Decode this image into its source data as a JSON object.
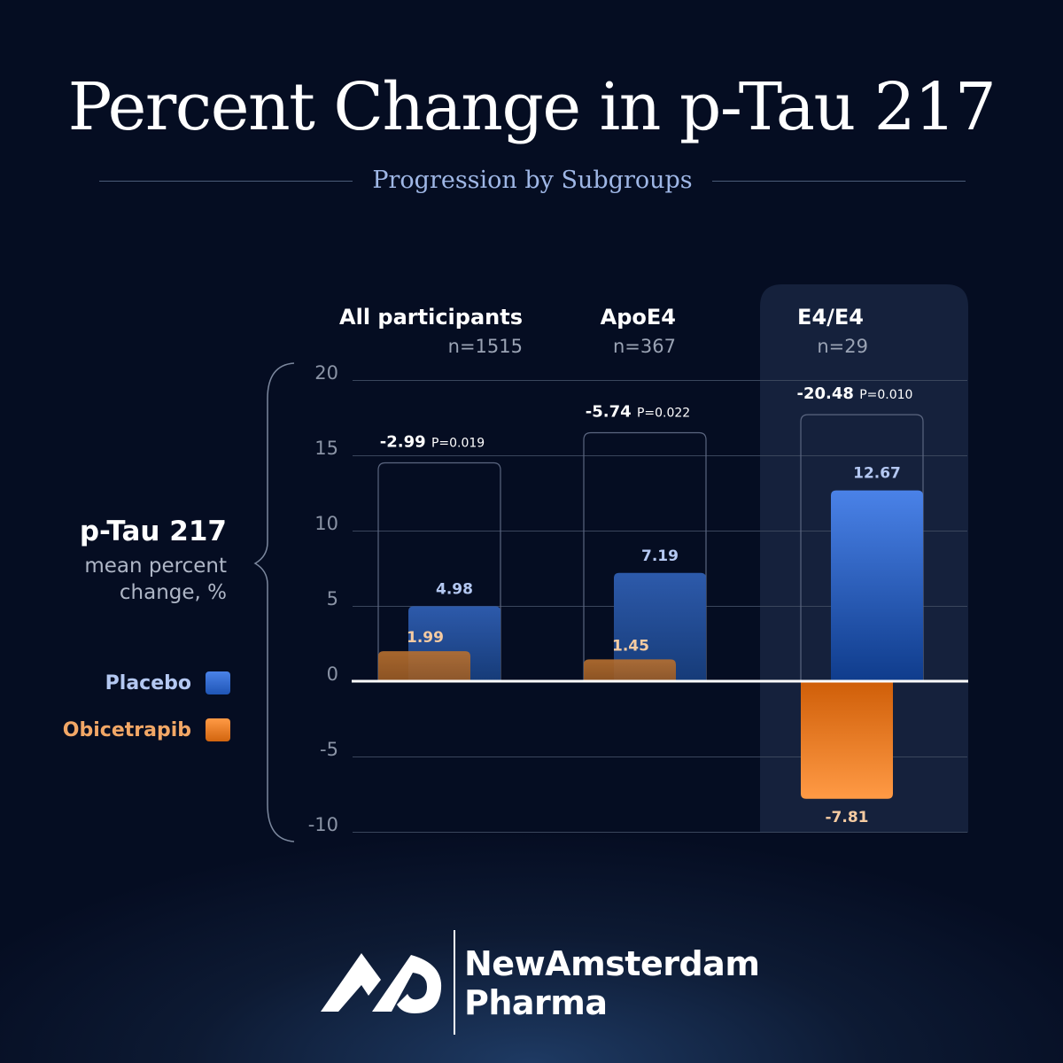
{
  "title": "Percent Change in p-Tau 217",
  "subtitle": "Progression by Subgroups",
  "y_axis": {
    "title": "p-Tau 217",
    "subtitle_line1": "mean percent",
    "subtitle_line2": "change, %"
  },
  "legend": [
    {
      "label": "Placebo",
      "color": "#3d73d6"
    },
    {
      "label": "Obicetrapib",
      "color": "#ef8a35"
    }
  ],
  "colors": {
    "placebo": "#3d73d6",
    "obicetrapib": "#ef8a35",
    "placebo_label": "#b4c8f2",
    "obicetrapib_label": "#f5cba2",
    "highlight_panel": "#15213c"
  },
  "chart_data": {
    "type": "bar",
    "title": "Percent Change in p-Tau 217",
    "subtitle": "Progression by Subgroups",
    "ylabel": "p-Tau 217 mean percent change, %",
    "ylim": [
      -10,
      20
    ],
    "yticks": [
      20,
      15,
      10,
      5,
      0,
      -5,
      -10
    ],
    "grid": true,
    "legend_position": "left",
    "categories": [
      "All participants",
      "ApoE4",
      "E4/E4"
    ],
    "n_labels": [
      "n=1515",
      "n=367",
      "n=29"
    ],
    "highlighted_category": "E4/E4",
    "series": [
      {
        "name": "Placebo",
        "values": [
          4.98,
          7.19,
          12.67
        ],
        "labels": [
          "4.98",
          "7.19",
          "12.67"
        ]
      },
      {
        "name": "Obicetrapib",
        "values": [
          1.99,
          1.45,
          -7.81
        ],
        "labels": [
          "1.99",
          "1.45",
          "-7.81"
        ]
      }
    ],
    "differences": [
      {
        "value": "-2.99",
        "p": "P=0.019",
        "bracket_top": 14.5
      },
      {
        "value": "-5.74",
        "p": "P=0.022",
        "bracket_top": 16.5
      },
      {
        "value": "-20.48",
        "p": "P=0.010",
        "bracket_top": 17.7
      }
    ]
  },
  "brand": {
    "line1": "NewAmsterdam",
    "line2": "Pharma"
  }
}
